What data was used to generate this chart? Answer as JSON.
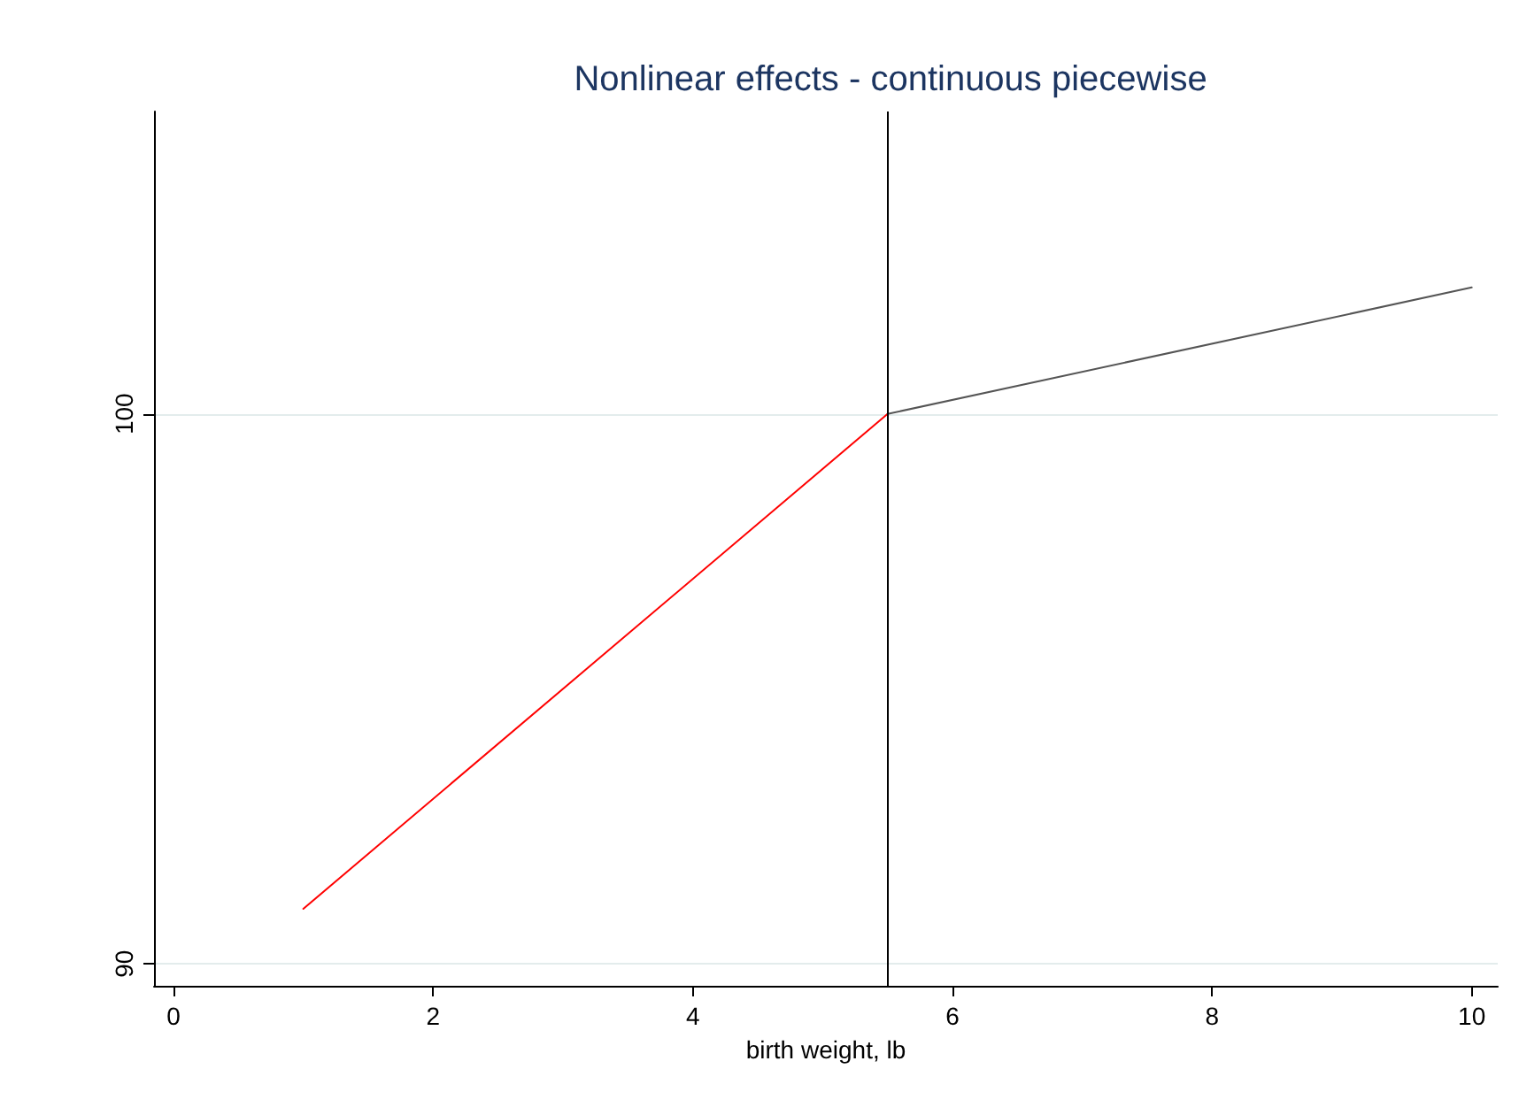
{
  "chart_data": {
    "type": "line",
    "title": "Nonlinear effects - continuous piecewise",
    "xlabel": "birth weight, lb",
    "series": [
      {
        "color": "#ff0000",
        "x": [
          1,
          5.5
        ],
        "values": [
          91,
          100
        ]
      },
      {
        "color": "#555555",
        "x": [
          5.5,
          10
        ],
        "values": [
          100,
          102.3
        ]
      }
    ],
    "xlim": [
      -0.15,
      10.2
    ],
    "xticks": [
      0,
      2,
      4,
      6,
      8,
      10
    ],
    "ylim": [
      89.6,
      105.5
    ],
    "yticks": [
      90,
      100
    ],
    "grid": "y",
    "marker": "none",
    "line_style": "solid",
    "ref_lines": [
      {
        "axis": "x",
        "value": 5.5,
        "color": "#000000"
      }
    ]
  }
}
